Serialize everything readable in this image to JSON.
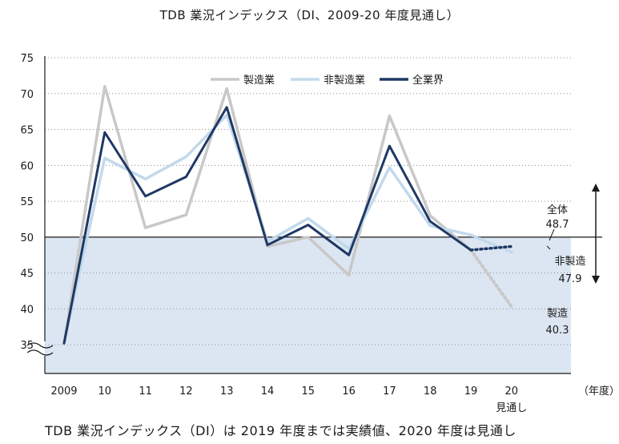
{
  "title": "TDB 業況インデックス（DI、2009-20 年度見通し）",
  "caption": "TDB 業況インデックス（DI）は 2019 年度までは実績値、2020 年度は見通し",
  "chart_data": {
    "type": "line",
    "title": "TDB 業況インデックス（DI、2009-20 年度見通し）",
    "categories": [
      "2009",
      "10",
      "11",
      "12",
      "13",
      "14",
      "15",
      "16",
      "17",
      "18",
      "19",
      "20"
    ],
    "x_unit_label": "（年度）",
    "forecast_category_label": "見通し",
    "ylim": [
      31,
      75
    ],
    "yticks": [
      35,
      40,
      45,
      50,
      55,
      60,
      65,
      70,
      75
    ],
    "axis_break_below": 35,
    "reference_line": 50,
    "shaded_region_below": 50,
    "legend_position": "top-center",
    "series": [
      {
        "name": "製造業",
        "color": "#c8c8c8",
        "values": [
          35.2,
          71.0,
          51.3,
          53.1,
          70.7,
          48.7,
          50.0,
          44.7,
          66.9,
          53.0,
          48.2,
          40.3
        ],
        "forecast_from_index": 10
      },
      {
        "name": "非製造業",
        "color": "#c2d9ec",
        "values": [
          35.2,
          61.0,
          58.1,
          61.2,
          67.0,
          49.4,
          52.6,
          48.4,
          59.7,
          51.6,
          50.3,
          47.9
        ],
        "forecast_from_index": 10
      },
      {
        "name": "全業界",
        "color": "#1f3864",
        "values": [
          35.2,
          64.6,
          55.7,
          58.4,
          68.1,
          48.9,
          51.7,
          47.5,
          62.7,
          52.2,
          48.2,
          48.7
        ],
        "forecast_from_index": 10
      }
    ],
    "end_labels": [
      {
        "label": "全体",
        "value": "48.7"
      },
      {
        "label": "非製造",
        "value": "47.9"
      },
      {
        "label": "製造",
        "value": "40.3"
      }
    ],
    "grid": true,
    "background": "#dce6f2"
  }
}
